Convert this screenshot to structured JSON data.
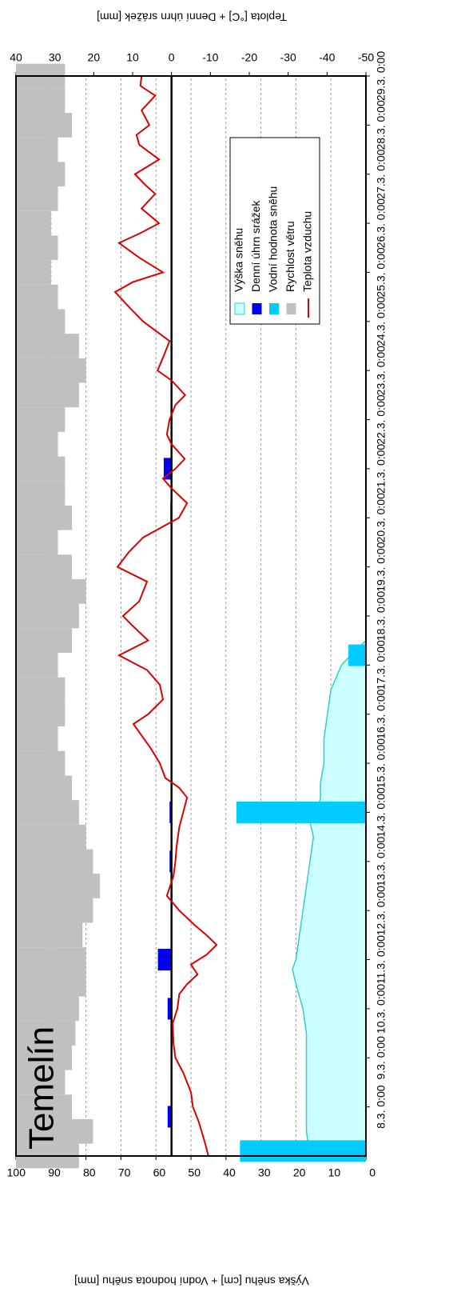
{
  "chart_data": {
    "type": "combo",
    "title": "Temelín",
    "y_label": "Výška sněhu [cm] + Vodní hodnota sněhu [mm]",
    "y2_label": "Teplota [°C] + Denní úhrn srážek [mm]",
    "xlim": [
      7,
      29
    ],
    "xticks": [
      {
        "value": 8,
        "label": "8.3. 0:00"
      },
      {
        "value": 9,
        "label": "9.3. 0:00"
      },
      {
        "value": 10,
        "label": "10.3. 0:00"
      },
      {
        "value": 11,
        "label": "11.3. 0:00"
      },
      {
        "value": 12,
        "label": "12.3. 0:00"
      },
      {
        "value": 13,
        "label": "13.3. 0:00"
      },
      {
        "value": 14,
        "label": "14.3. 0:00"
      },
      {
        "value": 15,
        "label": "15.3. 0:00"
      },
      {
        "value": 16,
        "label": "16.3. 0:00"
      },
      {
        "value": 17,
        "label": "17.3. 0:00"
      },
      {
        "value": 18,
        "label": "18.3. 0:00"
      },
      {
        "value": 19,
        "label": "19.3. 0:00"
      },
      {
        "value": 20,
        "label": "20.3. 0:00"
      },
      {
        "value": 21,
        "label": "21.3. 0:00"
      },
      {
        "value": 22,
        "label": "22.3. 0:00"
      },
      {
        "value": 23,
        "label": "23.3. 0:00"
      },
      {
        "value": 24,
        "label": "24.3. 0:00"
      },
      {
        "value": 25,
        "label": "25.3. 0:00"
      },
      {
        "value": 26,
        "label": "26.3. 0:00"
      },
      {
        "value": 27,
        "label": "27.3. 0:00"
      },
      {
        "value": 28,
        "label": "28.3. 0:00"
      },
      {
        "value": 29,
        "label": "29.3. 0:00"
      }
    ],
    "ylim": [
      0,
      100
    ],
    "yticks": [
      0,
      10,
      20,
      30,
      40,
      50,
      60,
      70,
      80,
      90,
      100
    ],
    "y2lim": [
      -50,
      40
    ],
    "y2ticks": [
      -50,
      -40,
      -30,
      -20,
      -10,
      0,
      10,
      20,
      30,
      40
    ],
    "grid": true,
    "series": [
      {
        "name": "Výška sněhu",
        "type": "area",
        "color": "#ccffff",
        "axis": "y",
        "x": [
          7.0,
          7.5,
          8.0,
          8.5,
          9.0,
          9.5,
          10.0,
          10.5,
          10.8,
          11.0,
          11.5,
          12.0,
          12.5,
          13.0,
          13.5,
          13.8,
          14.0,
          14.3,
          14.6,
          15.0,
          15.5,
          16.0,
          16.5,
          17.0,
          17.3,
          17.5
        ],
        "values": [
          16,
          17,
          17,
          17,
          17,
          17,
          18,
          20,
          21,
          20,
          19,
          18,
          17,
          16,
          15,
          16,
          14,
          13,
          13,
          12,
          12,
          11,
          10,
          7,
          3,
          0
        ]
      },
      {
        "name": "Denní úhrn srážek",
        "type": "bar",
        "color": "#0000ee",
        "axis": "y2",
        "x": [
          7.8,
          10.0,
          11.0,
          13.0,
          14.0,
          20.1,
          21.0
        ],
        "values": [
          1,
          1,
          3.5,
          0.5,
          0.5,
          0.3,
          2
        ]
      },
      {
        "name": "Vodní hodnota sněhu",
        "type": "bar",
        "color": "#00ccff",
        "axis": "y",
        "x": [
          7.1,
          14.0,
          17.2
        ],
        "values": [
          36,
          37,
          5
        ]
      },
      {
        "name": "Rychlost větru",
        "type": "drop",
        "color": "#c0c0c0",
        "axis": "y",
        "x": [
          7.0,
          7.5,
          8.0,
          8.5,
          9.0,
          9.5,
          10.0,
          10.5,
          11.0,
          11.5,
          12.0,
          12.5,
          13.0,
          13.5,
          14.0,
          14.5,
          15.0,
          15.5,
          16.0,
          16.5,
          17.0,
          17.5,
          18.0,
          18.5,
          19.0,
          19.5,
          20.0,
          20.5,
          21.0,
          21.5,
          22.0,
          22.5,
          23.0,
          23.5,
          24.0,
          24.5,
          25.0,
          25.5,
          26.0,
          26.5,
          27.0,
          27.5,
          28.0,
          28.5,
          29.0
        ],
        "values": [
          82,
          78,
          84,
          86,
          84,
          83,
          82,
          80,
          80,
          81,
          78,
          76,
          78,
          80,
          82,
          84,
          86,
          88,
          86,
          86,
          88,
          84,
          82,
          80,
          84,
          88,
          84,
          86,
          86,
          88,
          86,
          82,
          80,
          82,
          86,
          88,
          90,
          88,
          90,
          88,
          86,
          88,
          84,
          86,
          86
        ]
      },
      {
        "name": "Teplota vzduchu",
        "type": "line",
        "color": "#dd0000",
        "axis": "y2",
        "x": [
          7.0,
          7.3,
          7.7,
          8.0,
          8.3,
          8.7,
          9.0,
          9.3,
          9.7,
          10.0,
          10.3,
          10.5,
          10.7,
          10.9,
          11.1,
          11.3,
          11.5,
          11.7,
          12.0,
          12.3,
          12.7,
          13.0,
          13.3,
          13.7,
          14.0,
          14.3,
          14.5,
          14.7,
          15.0,
          15.3,
          15.6,
          15.8,
          16.0,
          16.3,
          16.6,
          16.9,
          17.2,
          17.5,
          17.8,
          18.0,
          18.3,
          18.7,
          19.0,
          19.3,
          19.6,
          20.0,
          20.3,
          20.6,
          20.8,
          21.0,
          21.2,
          21.5,
          21.7,
          22.0,
          22.3,
          22.5,
          22.8,
          23.0,
          23.3,
          23.6,
          24.0,
          24.3,
          24.6,
          24.8,
          25.0,
          25.3,
          25.6,
          25.8,
          26.0,
          26.3,
          26.6,
          26.8,
          27.0,
          27.3,
          27.6,
          27.8,
          28.0,
          28.3,
          28.6,
          28.8,
          29.0
        ],
        "values": [
          -9.5,
          -8.5,
          -7,
          -5.5,
          -5,
          -3,
          -1,
          -0.5,
          -0.3,
          -1.5,
          -2,
          -4,
          -6.7,
          -5,
          -9,
          -11.6,
          -9,
          -6,
          -2,
          1.2,
          -0.5,
          -1,
          -1.3,
          -2,
          -3,
          -4,
          -2,
          1.6,
          3,
          5.3,
          8,
          9.8,
          6,
          2.2,
          3,
          6.3,
          13.5,
          6,
          10,
          12.5,
          8.3,
          6.3,
          13.9,
          11,
          7.3,
          -1.9,
          -4,
          0,
          2.2,
          -1,
          -3.4,
          0,
          1.2,
          0.5,
          -1,
          -3.5,
          0,
          3.6,
          2,
          0.5,
          7.3,
          11,
          14.5,
          10,
          2.2,
          8.3,
          13.5,
          8,
          3.2,
          7.7,
          4.2,
          7,
          9.4,
          3.2,
          8.3,
          9,
          5.7,
          7.7,
          4.2,
          8,
          7.7
        ]
      }
    ]
  }
}
